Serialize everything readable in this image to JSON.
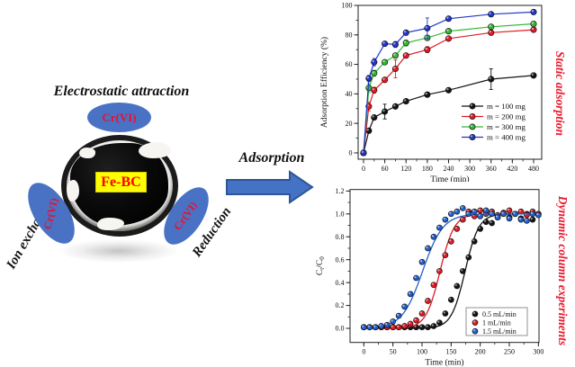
{
  "left_panel": {
    "electrostatic_label": "Electrostatic attraction",
    "ion_exchange_label": "Ion exchange",
    "reduction_label": "Reduction",
    "cr_label": "Cr(VI)",
    "material_label": "Fe-BC",
    "oval_color": "#4a72c4",
    "cr_text_color": "#e8112d",
    "material_bg": "#ffff00",
    "material_text_color": "#ff0000"
  },
  "arrow": {
    "label": "Adsorption",
    "fill": "#4472c4",
    "border": "#2e5596"
  },
  "captions": {
    "static": "Static adsorption",
    "dynamic": "Dynamic column experiments",
    "color": "#e8192c"
  },
  "chart_data": [
    {
      "type": "line",
      "title": "",
      "xlabel": "Time (min)",
      "ylabel": "Adsorption Efficiency (%)",
      "xlim": [
        -15.2,
        502.9
      ],
      "ylim": [
        -4.3,
        100
      ],
      "xticks": [
        "0",
        "60",
        "120",
        "180",
        "240",
        "300",
        "360",
        "420",
        "480"
      ],
      "yticks": [
        "0",
        "20",
        "40",
        "60",
        "80",
        "100"
      ],
      "xminor": 30,
      "yminor": 10,
      "grid": false,
      "legend_position": "inside lower right, no border",
      "x": [
        0,
        15,
        30,
        60,
        90,
        120,
        180,
        240,
        360,
        480
      ],
      "series": [
        {
          "name": "m = 100 mg",
          "color": "#141414",
          "values": [
            0,
            15,
            24,
            28,
            31.5,
            35,
            39.5,
            42.5,
            50,
            52.5
          ],
          "errors": [
            0.5,
            1,
            1,
            5,
            1.5,
            1,
            1.5,
            1,
            7,
            1.5
          ]
        },
        {
          "name": "m = 200 mg",
          "color": "#e01b24",
          "values": [
            0,
            31.5,
            42.5,
            49.5,
            57,
            66,
            70,
            77.5,
            81.5,
            83.5
          ],
          "errors": [
            0.5,
            3,
            2,
            1.5,
            6,
            1.5,
            2,
            1.5,
            1.5,
            1.5
          ]
        },
        {
          "name": "m = 300 mg",
          "color": "#35b835",
          "values": [
            0,
            44,
            54,
            61.5,
            66,
            74.5,
            78,
            82.5,
            85.5,
            87.5
          ],
          "errors": [
            0.5,
            3,
            2,
            1.5,
            1.5,
            2,
            1.5,
            1.5,
            1.5,
            1.5
          ]
        },
        {
          "name": "m = 400 mg",
          "color": "#2136c9",
          "values": [
            0,
            50.5,
            61.5,
            74,
            73.5,
            81.5,
            84.5,
            91,
            94,
            95.5
          ],
          "errors": [
            0.5,
            2,
            2.5,
            1.5,
            2,
            1.5,
            7,
            1.5,
            1.5,
            1
          ]
        }
      ]
    },
    {
      "type": "scatter",
      "title": "",
      "xlabel": "Time (min)",
      "ylabel": "Ct/C0",
      "ylabel_parts": [
        {
          "t": "C"
        },
        {
          "t": "t",
          "sub": true
        },
        {
          "t": "/C"
        },
        {
          "t": "0",
          "sub": true
        }
      ],
      "xlim": [
        -23.7,
        301
      ],
      "ylim": [
        -0.123,
        1.213
      ],
      "xticks": [
        "0",
        "50",
        "100",
        "150",
        "200",
        "250",
        "300"
      ],
      "yticks": [
        "0.0",
        "0.2",
        "0.4",
        "0.6",
        "0.8",
        "1.0",
        "1.2"
      ],
      "xminor": 25,
      "yminor": 0.1,
      "grid": false,
      "legend_position": "inside lower right, boxed",
      "x": [
        0,
        10,
        20,
        30,
        40,
        50,
        60,
        70,
        80,
        90,
        100,
        110,
        120,
        130,
        140,
        150,
        160,
        170,
        180,
        190,
        200,
        210,
        220,
        230,
        240,
        250,
        260,
        270,
        280,
        290,
        300
      ],
      "series": [
        {
          "name": "0.5 mL/min",
          "color": "#141414",
          "fit": {
            "t0": 174,
            "k": 0.085
          },
          "values": [
            0.01,
            0.01,
            0.01,
            0.01,
            0.01,
            0.01,
            0.01,
            0.01,
            0.01,
            0.01,
            0.01,
            0.01,
            0.02,
            0.05,
            0.13,
            0.25,
            0.37,
            0.5,
            0.62,
            0.76,
            0.87,
            0.93,
            0.92,
            0.97,
            1.0,
            0.97,
            1.0,
            0.96,
            1.0,
            0.95,
            1.0
          ]
        },
        {
          "name": "1 mL/min",
          "color": "#e01b24",
          "fit": {
            "t0": 131,
            "k": 0.082
          },
          "values": [
            0.01,
            0.01,
            0.01,
            0.01,
            0.01,
            0.01,
            0.01,
            0.02,
            0.04,
            0.07,
            0.13,
            0.24,
            0.38,
            0.5,
            0.64,
            0.76,
            0.87,
            0.95,
            1.02,
            0.98,
            1.03,
            1.0,
            1.02,
            0.99,
            1.01,
            1.03,
            1.0,
            1.02,
            0.99,
            1.02,
            1.0
          ]
        },
        {
          "name": "1.5 mL/min",
          "color": "#2160d0",
          "fit": {
            "t0": 101,
            "k": 0.057
          },
          "values": [
            0.01,
            0.01,
            0.01,
            0.02,
            0.03,
            0.06,
            0.11,
            0.19,
            0.3,
            0.44,
            0.58,
            0.7,
            0.8,
            0.88,
            0.95,
            1.0,
            1.02,
            1.05,
            1.0,
            1.02,
            0.98,
            1.03,
            1.0,
            0.97,
            1.0,
            0.96,
            1.0,
            0.95,
            0.94,
            1.0,
            0.99
          ]
        }
      ]
    }
  ]
}
